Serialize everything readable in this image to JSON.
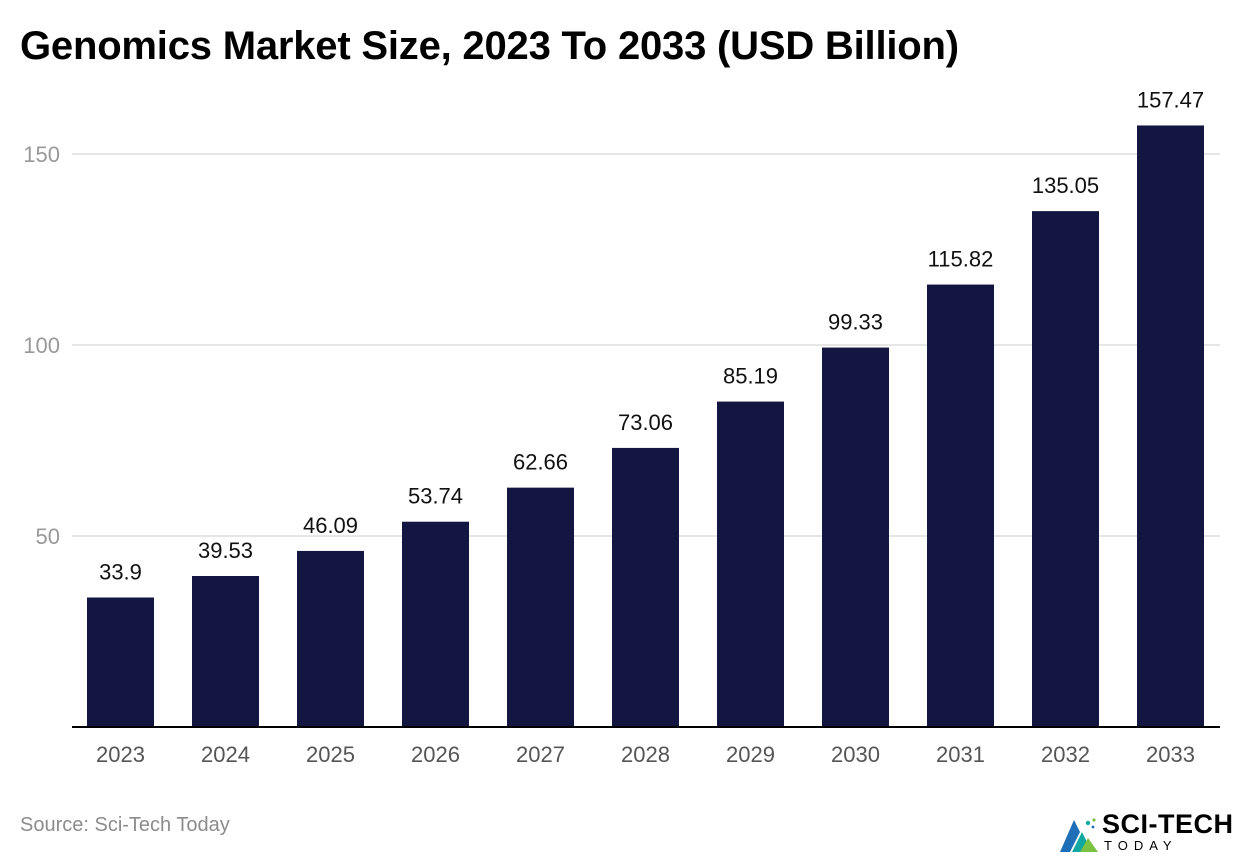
{
  "chart_data": {
    "type": "bar",
    "title": "Genomics Market Size, 2023 To 2033 (USD Billion)",
    "categories": [
      "2023",
      "2024",
      "2025",
      "2026",
      "2027",
      "2028",
      "2029",
      "2030",
      "2031",
      "2032",
      "2033"
    ],
    "values": [
      33.9,
      39.53,
      46.09,
      53.74,
      62.66,
      73.06,
      85.19,
      99.33,
      115.82,
      135.05,
      157.47
    ],
    "data_labels": [
      "33.9",
      "39.53",
      "46.09",
      "53.74",
      "62.66",
      "73.06",
      "85.19",
      "99.33",
      "115.82",
      "135.05",
      "157.47"
    ],
    "yticks": [
      50,
      100,
      150
    ],
    "ylim": [
      0,
      160
    ],
    "xlabel": "",
    "ylabel": "",
    "grid": true,
    "legend": "none",
    "colors": {
      "bar": "#121640",
      "grid": "#dddddd",
      "axis": "#000000",
      "tick_label": "#999999",
      "category_label": "#555555",
      "data_label": "#111111"
    }
  },
  "source": "Source: Sci-Tech Today",
  "logo": {
    "name": "SCI-TECH",
    "sub": "TODAY",
    "icon": "sci-tech-logo-icon"
  }
}
